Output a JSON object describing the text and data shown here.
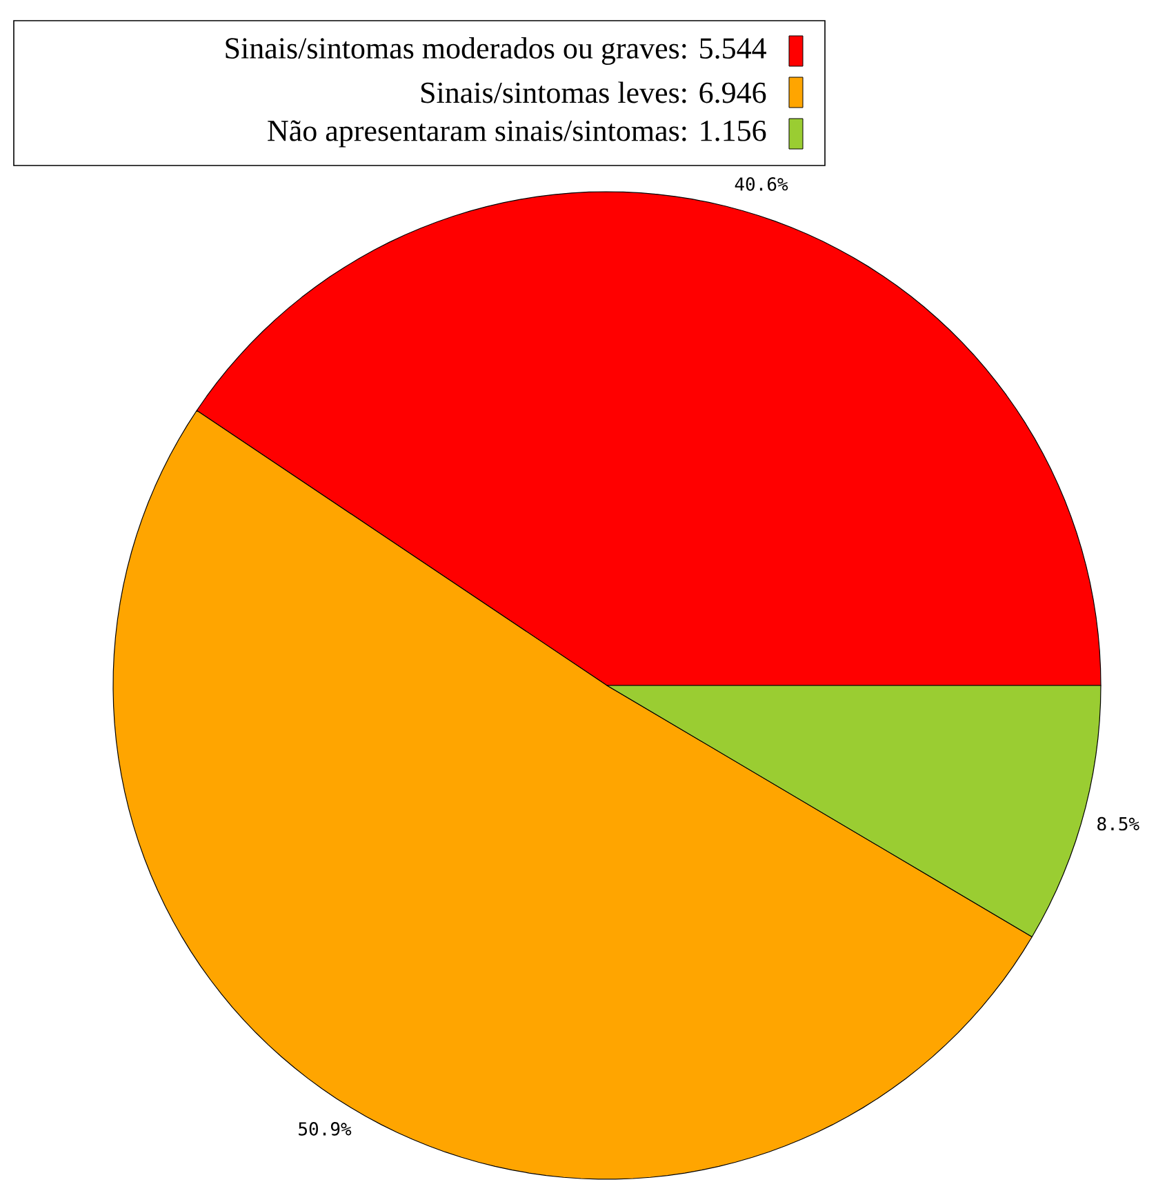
{
  "chart_data": {
    "type": "pie",
    "categories": [
      "Sinais/sintomas moderados ou graves: 5.544",
      "Sinais/sintomas leves: 6.946",
      "Não apresentaram sinais/sintomas: 1.156"
    ],
    "values": [
      40.6,
      50.9,
      8.5
    ],
    "value_labels": [
      "40.6%",
      "50.9%",
      "8.5%"
    ],
    "colors": [
      "#ff0000",
      "#ffa500",
      "#9acd32"
    ],
    "legend": "top left"
  }
}
